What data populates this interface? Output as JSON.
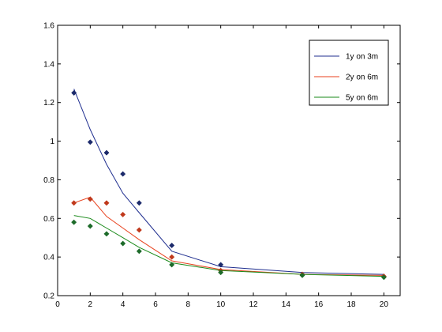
{
  "chart_data": {
    "type": "line",
    "title": "",
    "xlabel": "",
    "ylabel": "",
    "xlim": [
      0,
      21
    ],
    "ylim": [
      0.2,
      1.6
    ],
    "xticks": [
      0,
      2,
      4,
      6,
      8,
      10,
      12,
      14,
      16,
      18,
      20
    ],
    "yticks": [
      0.2,
      0.4,
      0.6,
      0.8,
      1,
      1.2,
      1.4,
      1.6
    ],
    "grid": false,
    "legend_position": "top-right",
    "series": [
      {
        "name": "1y on 3m",
        "color": "#1f2e8f",
        "marker_color": "#1c2a6b",
        "line_x": [
          1,
          2,
          3,
          4,
          5,
          7,
          10,
          15,
          20
        ],
        "line_y": [
          1.27,
          1.06,
          0.88,
          0.73,
          0.63,
          0.43,
          0.35,
          0.32,
          0.31
        ],
        "points_x": [
          1,
          2,
          3,
          4,
          5,
          7,
          10,
          15,
          20
        ],
        "points_y": [
          1.25,
          0.995,
          0.94,
          0.83,
          0.68,
          0.46,
          0.36,
          0.31,
          0.3
        ]
      },
      {
        "name": "2y on 6m",
        "color": "#e8401c",
        "marker_color": "#c0391c",
        "line_x": [
          1,
          2,
          3,
          4,
          5,
          7,
          10,
          15,
          20
        ],
        "line_y": [
          0.68,
          0.71,
          0.61,
          0.55,
          0.49,
          0.38,
          0.335,
          0.31,
          0.305
        ],
        "points_x": [
          1,
          2,
          3,
          4,
          5,
          7,
          10,
          15,
          20
        ],
        "points_y": [
          0.68,
          0.7,
          0.68,
          0.62,
          0.54,
          0.4,
          0.33,
          0.31,
          0.3
        ]
      },
      {
        "name": "5y on 6m",
        "color": "#1a8a1a",
        "marker_color": "#1d6b2a",
        "line_x": [
          1,
          2,
          3,
          4,
          5,
          7,
          10,
          15,
          20
        ],
        "line_y": [
          0.615,
          0.6,
          0.55,
          0.5,
          0.45,
          0.37,
          0.33,
          0.31,
          0.3
        ],
        "points_x": [
          1,
          2,
          3,
          4,
          5,
          7,
          10,
          15,
          20
        ],
        "points_y": [
          0.58,
          0.56,
          0.52,
          0.47,
          0.43,
          0.36,
          0.32,
          0.305,
          0.295
        ]
      }
    ]
  }
}
